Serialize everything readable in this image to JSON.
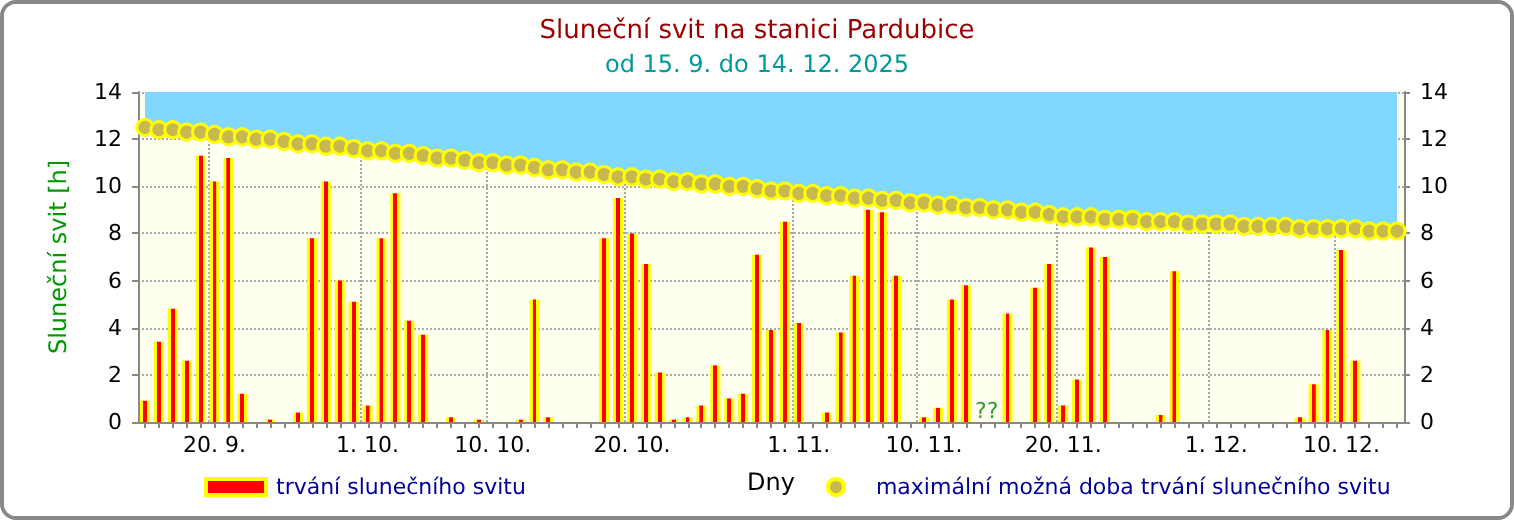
{
  "chart_data": {
    "type": "bar",
    "title": "Sluneční svit na stanici Pardubice",
    "subtitle": "od 15. 9. do 14. 12. 2025",
    "xlabel": "Dny",
    "ylabel": "Sluneční svit [h]",
    "categories": [
      null,
      null,
      null,
      null,
      null,
      "20. 9.",
      null,
      null,
      null,
      null,
      null,
      null,
      null,
      null,
      null,
      null,
      "1. 10.",
      null,
      null,
      null,
      null,
      null,
      null,
      null,
      null,
      "10. 10.",
      null,
      null,
      null,
      null,
      null,
      null,
      null,
      null,
      null,
      "20. 10.",
      null,
      null,
      null,
      null,
      null,
      null,
      null,
      null,
      null,
      null,
      null,
      "1. 11.",
      null,
      null,
      null,
      null,
      null,
      null,
      null,
      null,
      "10. 11.",
      null,
      null,
      null,
      null,
      null,
      null,
      null,
      null,
      null,
      "20. 11.",
      null,
      null,
      null,
      null,
      null,
      null,
      null,
      null,
      null,
      null,
      "1. 12.",
      null,
      null,
      null,
      null,
      null,
      null,
      null,
      null,
      "10. 12.",
      null,
      null,
      null,
      null
    ],
    "series": [
      {
        "name": "trvání slunečního svitu",
        "color": "#ff0000",
        "values": [
          0.9,
          3.4,
          4.8,
          2.6,
          11.3,
          10.2,
          11.2,
          1.2,
          0,
          0.1,
          0,
          0.4,
          7.8,
          10.2,
          6.0,
          5.1,
          0.7,
          7.8,
          9.7,
          4.3,
          3.7,
          0,
          0.2,
          0,
          0.1,
          0,
          0,
          0.1,
          5.2,
          0.2,
          0,
          0,
          0,
          7.8,
          9.5,
          8.0,
          6.7,
          2.1,
          0.1,
          0.2,
          0.7,
          2.4,
          1.0,
          1.2,
          7.1,
          3.9,
          8.5,
          4.2,
          0,
          0.4,
          3.8,
          6.2,
          9.0,
          8.9,
          6.2,
          0,
          0.2,
          0.6,
          5.2,
          5.8,
          null,
          null,
          4.6,
          0,
          5.7,
          6.7,
          0.7,
          1.8,
          7.4,
          7.0,
          0,
          0,
          0,
          0.3,
          6.4,
          0,
          0,
          0,
          0,
          0,
          0,
          0,
          0,
          0.2,
          1.6,
          3.9,
          7.3,
          2.6,
          0,
          0,
          0
        ]
      },
      {
        "name": "maximální možná doba trvání slunečního svitu",
        "type": "scatter",
        "color": "#c8b850",
        "upper": [
          14,
          14,
          14,
          14,
          14,
          14,
          14,
          14,
          14,
          14,
          14,
          14,
          14,
          14,
          14,
          14,
          14,
          14,
          14,
          14,
          14,
          14,
          14,
          14,
          14,
          14,
          14,
          14,
          14,
          14,
          14,
          14,
          14,
          14,
          14,
          14,
          14,
          14,
          14,
          14,
          14,
          14,
          14,
          14,
          14,
          14,
          14,
          14,
          14,
          14,
          14,
          14,
          14,
          14,
          14,
          14,
          14,
          14,
          14,
          14,
          14,
          14,
          14,
          14,
          14,
          14,
          14,
          14,
          14,
          14,
          14,
          14,
          14,
          14,
          14,
          14,
          14,
          14,
          14,
          14,
          14,
          14,
          14,
          14,
          14,
          14,
          14,
          14,
          14,
          14,
          14
        ],
        "lower": [
          12.5,
          12.4,
          12.4,
          12.3,
          12.3,
          12.2,
          12.1,
          12.1,
          12.0,
          12.0,
          11.9,
          11.8,
          11.8,
          11.7,
          11.7,
          11.6,
          11.5,
          11.5,
          11.4,
          11.4,
          11.3,
          11.2,
          11.2,
          11.1,
          11.0,
          11.0,
          10.9,
          10.9,
          10.8,
          10.7,
          10.7,
          10.6,
          10.6,
          10.5,
          10.4,
          10.4,
          10.3,
          10.3,
          10.2,
          10.2,
          10.1,
          10.1,
          10.0,
          10.0,
          9.9,
          9.8,
          9.8,
          9.7,
          9.7,
          9.6,
          9.6,
          9.5,
          9.5,
          9.4,
          9.4,
          9.3,
          9.3,
          9.2,
          9.2,
          9.1,
          9.1,
          9.0,
          9.0,
          8.9,
          8.9,
          8.8,
          8.7,
          8.7,
          8.7,
          8.6,
          8.6,
          8.6,
          8.5,
          8.5,
          8.5,
          8.4,
          8.4,
          8.4,
          8.4,
          8.3,
          8.3,
          8.3,
          8.3,
          8.2,
          8.2,
          8.2,
          8.2,
          8.2,
          8.1,
          8.1,
          8.1
        ],
        "values": [
          12.5,
          12.4,
          12.4,
          12.3,
          12.3,
          12.2,
          12.1,
          12.1,
          12.0,
          12.0,
          11.9,
          11.8,
          11.8,
          11.7,
          11.7,
          11.6,
          11.5,
          11.5,
          11.4,
          11.4,
          11.3,
          11.2,
          11.2,
          11.1,
          11.0,
          11.0,
          10.9,
          10.9,
          10.8,
          10.7,
          10.7,
          10.6,
          10.6,
          10.5,
          10.4,
          10.4,
          10.3,
          10.3,
          10.2,
          10.2,
          10.1,
          10.1,
          10.0,
          10.0,
          9.9,
          9.8,
          9.8,
          9.7,
          9.7,
          9.6,
          9.6,
          9.5,
          9.5,
          9.4,
          9.4,
          9.3,
          9.3,
          9.2,
          9.2,
          9.1,
          9.1,
          9.0,
          9.0,
          8.9,
          8.9,
          8.8,
          8.7,
          8.7,
          8.7,
          8.6,
          8.6,
          8.6,
          8.5,
          8.5,
          8.5,
          8.4,
          8.4,
          8.4,
          8.4,
          8.3,
          8.3,
          8.3,
          8.3,
          8.2,
          8.2,
          8.2,
          8.2,
          8.2,
          8.1,
          8.1,
          8.1
        ]
      }
    ],
    "annotations": [
      "??"
    ],
    "ylim": [
      0,
      14
    ],
    "yticks": [
      0,
      2,
      4,
      6,
      8,
      10,
      12,
      14
    ],
    "y2lim": [
      0,
      14
    ],
    "y2ticks": [
      0,
      2,
      4,
      6,
      8,
      10,
      12,
      14
    ],
    "grid": true,
    "legend": "bottom",
    "marker": "circle"
  }
}
